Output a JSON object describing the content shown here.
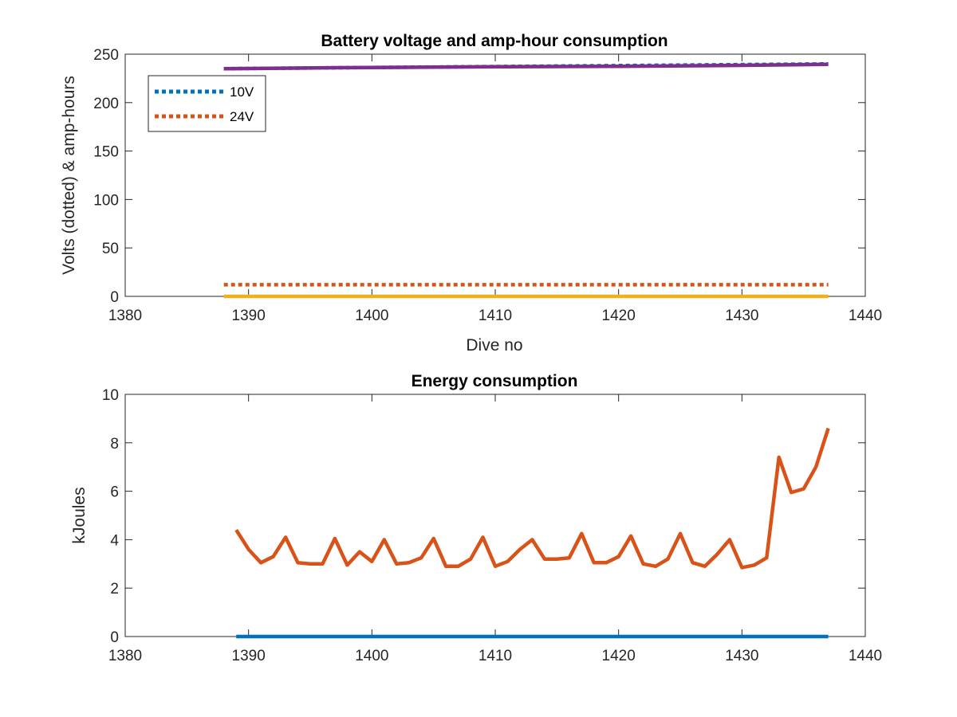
{
  "figure": {
    "background": "#ffffff",
    "axis_color": "#262626"
  },
  "chart_data": [
    {
      "type": "line",
      "title": "Battery voltage and amp-hour consumption",
      "xlabel": "Dive no",
      "ylabel": "Volts (dotted) & amp-hours",
      "xlim": [
        1380,
        1440
      ],
      "ylim": [
        0,
        250
      ],
      "xticks": [
        1380,
        1390,
        1400,
        1410,
        1420,
        1430,
        1440
      ],
      "yticks": [
        0,
        50,
        100,
        150,
        200,
        250
      ],
      "grid": false,
      "legend": {
        "placement": "top-left",
        "entries": [
          "10V",
          "24V"
        ]
      },
      "series": [
        {
          "name": "10V",
          "style": "dotted",
          "color": "#0072BD",
          "x": [
            1388,
            1437
          ],
          "y": [
            235,
            240
          ]
        },
        {
          "name": "24V",
          "style": "dotted",
          "color": "#D95319",
          "x": [
            1388,
            1437
          ],
          "y": [
            12,
            12
          ]
        },
        {
          "style": "solid",
          "color": "#EDB120",
          "x": [
            1388,
            1437
          ],
          "y": [
            0,
            0
          ]
        },
        {
          "style": "solid",
          "color": "#7E2F8E",
          "x": [
            1388,
            1397,
            1410,
            1420,
            1430,
            1437
          ],
          "y": [
            235,
            236,
            237,
            237.5,
            238.5,
            239.5
          ]
        }
      ]
    },
    {
      "type": "line",
      "title": "Energy consumption",
      "xlabel": "",
      "ylabel": "kJoules",
      "xlim": [
        1380,
        1440
      ],
      "ylim": [
        0,
        10
      ],
      "xticks": [
        1380,
        1390,
        1400,
        1410,
        1420,
        1430,
        1440
      ],
      "yticks": [
        0,
        2,
        4,
        6,
        8,
        10
      ],
      "grid": false,
      "series": [
        {
          "style": "solid",
          "color": "#0072BD",
          "x": [
            1389,
            1437
          ],
          "y": [
            0,
            0
          ]
        },
        {
          "style": "solid",
          "color": "#D95319",
          "x": [
            1389,
            1390,
            1391,
            1392,
            1393,
            1394,
            1395,
            1396,
            1397,
            1398,
            1399,
            1400,
            1401,
            1402,
            1403,
            1404,
            1405,
            1406,
            1407,
            1408,
            1409,
            1410,
            1411,
            1412,
            1413,
            1414,
            1415,
            1416,
            1417,
            1418,
            1419,
            1420,
            1421,
            1422,
            1423,
            1424,
            1425,
            1426,
            1427,
            1428,
            1429,
            1430,
            1431,
            1432,
            1433,
            1434,
            1435,
            1436,
            1437
          ],
          "y": [
            4.4,
            3.6,
            3.05,
            3.3,
            4.1,
            3.05,
            3.0,
            3.0,
            4.05,
            2.95,
            3.5,
            3.1,
            4.0,
            3.0,
            3.05,
            3.25,
            4.05,
            2.9,
            2.9,
            3.2,
            4.1,
            2.9,
            3.1,
            3.6,
            4.0,
            3.2,
            3.2,
            3.25,
            4.25,
            3.05,
            3.05,
            3.3,
            4.15,
            3.0,
            2.9,
            3.2,
            4.25,
            3.05,
            2.9,
            3.4,
            4.0,
            2.85,
            2.95,
            3.25,
            7.4,
            5.95,
            6.1,
            7.0,
            8.6
          ]
        }
      ]
    }
  ]
}
